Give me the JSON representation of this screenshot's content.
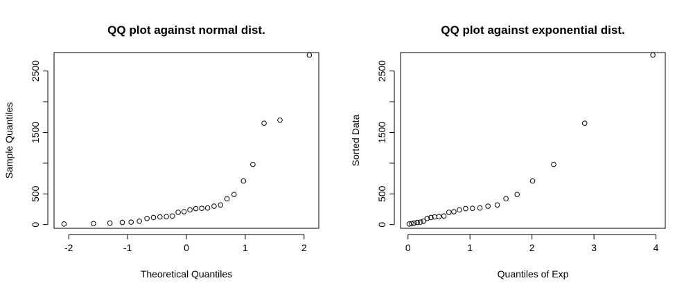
{
  "chart_data": [
    {
      "type": "scatter",
      "title": "QQ plot against normal dist.",
      "xlabel": "Theoretical Quantiles",
      "ylabel": "Sample Quantiles",
      "xlim": [
        -2.25,
        2.25
      ],
      "ylim": [
        -60,
        2800
      ],
      "grid": false,
      "x_ticks": [
        -2,
        -1,
        0,
        1,
        2
      ],
      "y_ticks": [
        0,
        500,
        1500,
        2500
      ],
      "x_tick_labels": [
        "-2",
        "-1",
        "0",
        "1",
        "2"
      ],
      "y_tick_labels": [
        "0",
        "500",
        "1500",
        "2500"
      ],
      "points": [
        [
          -2.08,
          10
        ],
        [
          -1.58,
          15
        ],
        [
          -1.3,
          25
        ],
        [
          -1.09,
          35
        ],
        [
          -0.94,
          40
        ],
        [
          -0.8,
          55
        ],
        [
          -0.67,
          100
        ],
        [
          -0.56,
          115
        ],
        [
          -0.45,
          125
        ],
        [
          -0.34,
          130
        ],
        [
          -0.24,
          140
        ],
        [
          -0.14,
          200
        ],
        [
          -0.04,
          210
        ],
        [
          0.06,
          240
        ],
        [
          0.16,
          260
        ],
        [
          0.26,
          265
        ],
        [
          0.36,
          270
        ],
        [
          0.47,
          300
        ],
        [
          0.58,
          320
        ],
        [
          0.69,
          420
        ],
        [
          0.81,
          490
        ],
        [
          0.97,
          710
        ],
        [
          1.13,
          980
        ],
        [
          1.32,
          1650
        ],
        [
          1.59,
          1700
        ],
        [
          2.09,
          2760
        ]
      ]
    },
    {
      "type": "scatter",
      "title": "QQ plot against exponential dist.",
      "xlabel": "Quantiles of Exp",
      "ylabel": "Sorted Data",
      "xlim": [
        -0.12,
        4.15
      ],
      "ylim": [
        -60,
        2800
      ],
      "grid": false,
      "x_ticks": [
        0,
        1,
        2,
        3,
        4
      ],
      "y_ticks": [
        0,
        500,
        1500,
        2500
      ],
      "x_tick_labels": [
        "0",
        "1",
        "2",
        "3",
        "4"
      ],
      "y_tick_labels": [
        "0",
        "500",
        "1500",
        "2500"
      ],
      "points": [
        [
          0.02,
          10
        ],
        [
          0.06,
          15
        ],
        [
          0.1,
          25
        ],
        [
          0.15,
          35
        ],
        [
          0.2,
          40
        ],
        [
          0.25,
          55
        ],
        [
          0.31,
          100
        ],
        [
          0.37,
          115
        ],
        [
          0.43,
          125
        ],
        [
          0.5,
          130
        ],
        [
          0.58,
          140
        ],
        [
          0.66,
          200
        ],
        [
          0.74,
          210
        ],
        [
          0.83,
          240
        ],
        [
          0.93,
          260
        ],
        [
          1.04,
          265
        ],
        [
          1.16,
          270
        ],
        [
          1.29,
          300
        ],
        [
          1.44,
          320
        ],
        [
          1.58,
          420
        ],
        [
          1.76,
          490
        ],
        [
          2.01,
          710
        ],
        [
          2.35,
          980
        ],
        [
          2.85,
          1650
        ],
        [
          3.95,
          2760
        ]
      ]
    }
  ]
}
